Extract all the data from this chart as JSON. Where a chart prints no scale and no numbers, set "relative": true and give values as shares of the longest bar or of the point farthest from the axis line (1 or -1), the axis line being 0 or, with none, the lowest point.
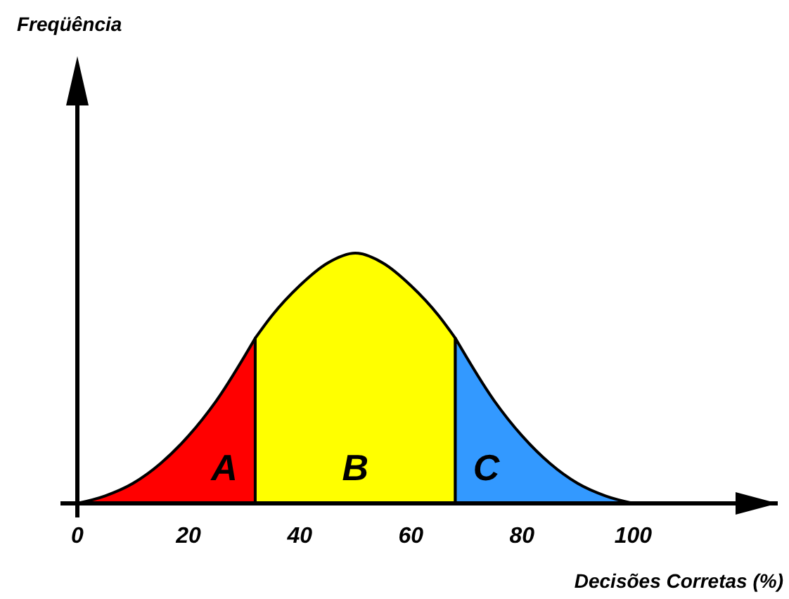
{
  "chart_data": {
    "type": "area",
    "relative": true,
    "xlabel": "Decisões Corretas (%)",
    "annotations": [
      "Freqüência"
    ],
    "xlim": [
      0,
      126
    ],
    "xticks": [
      0,
      20,
      40,
      60,
      80,
      100
    ],
    "legend": false,
    "grid": false,
    "series": [
      {
        "name": "A",
        "color": "#ff0000",
        "x": [
          0,
          5,
          10,
          15,
          20,
          25,
          32
        ],
        "values": [
          0,
          0.03,
          0.08,
          0.16,
          0.27,
          0.41,
          0.66
        ]
      },
      {
        "name": "B",
        "color": "#ffff00",
        "x": [
          32,
          35,
          40,
          45,
          50,
          55,
          60,
          65,
          68
        ],
        "values": [
          0.66,
          0.75,
          0.87,
          0.96,
          1,
          0.96,
          0.87,
          0.75,
          0.66
        ]
      },
      {
        "name": "C",
        "color": "#3399ff",
        "x": [
          68,
          75,
          80,
          85,
          90,
          95,
          100
        ],
        "values": [
          0.66,
          0.41,
          0.27,
          0.16,
          0.08,
          0.03,
          0
        ]
      }
    ]
  }
}
